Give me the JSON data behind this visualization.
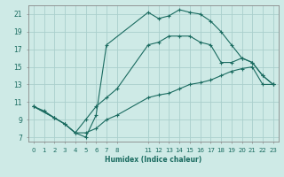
{
  "xlabel": "Humidex (Indice chaleur)",
  "bg_color": "#ceeae6",
  "grid_color": "#aacfcc",
  "line_color": "#1a6b60",
  "spine_color": "#888888",
  "xlim": [
    -0.5,
    23.5
  ],
  "ylim": [
    6.5,
    22.0
  ],
  "xticks": [
    0,
    1,
    2,
    3,
    4,
    5,
    6,
    7,
    8,
    11,
    12,
    13,
    14,
    15,
    16,
    17,
    18,
    19,
    20,
    21,
    22,
    23
  ],
  "yticks": [
    7,
    9,
    11,
    13,
    15,
    17,
    19,
    21
  ],
  "line1_x": [
    0,
    1,
    2,
    3,
    4,
    5,
    6,
    7,
    11,
    12,
    13,
    14,
    15,
    16,
    17,
    18,
    19,
    20,
    21,
    22,
    23
  ],
  "line1_y": [
    10.5,
    10.0,
    9.2,
    8.5,
    7.5,
    7.0,
    9.5,
    17.5,
    21.2,
    20.5,
    20.8,
    21.5,
    21.2,
    21.0,
    20.2,
    19.0,
    17.5,
    16.0,
    15.5,
    14.0,
    13.0
  ],
  "line2_x": [
    0,
    2,
    3,
    4,
    5,
    6,
    7,
    8,
    11,
    12,
    13,
    14,
    15,
    16,
    17,
    18,
    19,
    20,
    21,
    22,
    23
  ],
  "line2_y": [
    10.5,
    9.2,
    8.5,
    7.5,
    9.0,
    10.5,
    11.5,
    12.5,
    17.5,
    17.8,
    18.5,
    18.5,
    18.5,
    17.8,
    17.5,
    15.5,
    15.5,
    16.0,
    15.5,
    14.0,
    13.0
  ],
  "line3_x": [
    0,
    2,
    3,
    4,
    5,
    6,
    7,
    8,
    11,
    12,
    13,
    14,
    15,
    16,
    17,
    18,
    19,
    20,
    21,
    22,
    23
  ],
  "line3_y": [
    10.5,
    9.2,
    8.5,
    7.5,
    7.5,
    8.0,
    9.0,
    9.5,
    11.5,
    11.8,
    12.0,
    12.5,
    13.0,
    13.2,
    13.5,
    14.0,
    14.5,
    14.8,
    15.0,
    13.0,
    13.0
  ]
}
